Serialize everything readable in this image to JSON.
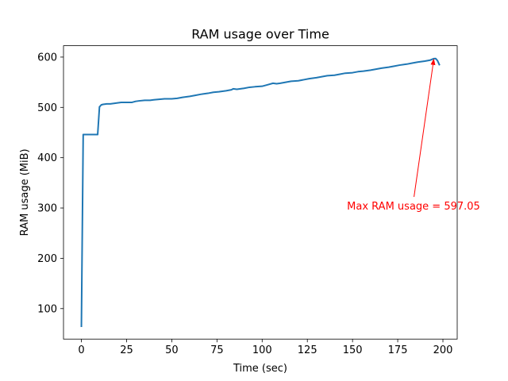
{
  "chart_data": {
    "type": "line",
    "title": "RAM usage over Time",
    "xlabel": "Time (sec)",
    "ylabel": "RAM usage (MiB)",
    "xlim": [
      -9.9,
      207.9
    ],
    "ylim": [
      39.4,
      622.6
    ],
    "xticks": [
      0,
      25,
      50,
      75,
      100,
      125,
      150,
      175,
      200
    ],
    "yticks": [
      100,
      200,
      300,
      400,
      500,
      600
    ],
    "grid": false,
    "line_color": "#1f77b4",
    "series": [
      {
        "x": [
          0,
          1,
          2,
          3,
          4,
          5,
          6,
          7,
          8,
          9,
          10,
          11,
          12,
          14,
          16,
          18,
          20,
          22,
          25,
          28,
          30,
          32,
          35,
          38,
          40,
          43,
          46,
          50,
          53,
          56,
          60,
          63,
          66,
          70,
          73,
          76,
          80,
          83,
          84,
          86,
          88,
          90,
          93,
          96,
          100,
          103,
          106,
          108,
          110,
          113,
          116,
          120,
          123,
          126,
          130,
          133,
          136,
          140,
          143,
          146,
          150,
          153,
          156,
          160,
          163,
          166,
          170,
          173,
          176,
          180,
          183,
          186,
          190,
          193,
          195,
          196,
          197,
          198
        ],
        "y": [
          65,
          446,
          446,
          446,
          446,
          446,
          446,
          446,
          446,
          446,
          501,
          505,
          506,
          507,
          507,
          508,
          509,
          510,
          510,
          510,
          512,
          513,
          514,
          514,
          515,
          516,
          517,
          517,
          518,
          520,
          522,
          524,
          526,
          528,
          530,
          531,
          533,
          535,
          537,
          536,
          537,
          538,
          540,
          541,
          542,
          545,
          548,
          547,
          548,
          550,
          552,
          553,
          555,
          557,
          559,
          561,
          563,
          564,
          566,
          568,
          569,
          571,
          572,
          574,
          576,
          578,
          580,
          582,
          584,
          586,
          588,
          590,
          592,
          594,
          597,
          597.05,
          593,
          585
        ]
      }
    ],
    "annotation": {
      "text": "Max RAM usage = 597.05",
      "color": "#ff0000",
      "point": [
        195,
        597.05
      ],
      "text_anchor_point": [
        184,
        322
      ]
    }
  }
}
